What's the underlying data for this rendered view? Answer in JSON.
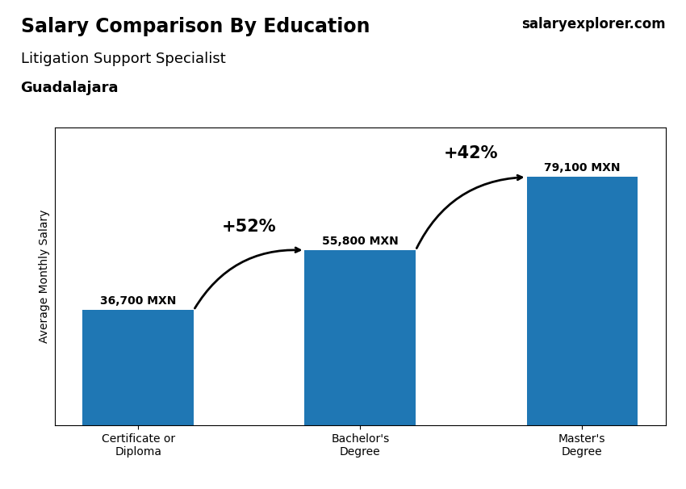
{
  "chart_data": {
    "type": "bar",
    "title": "Salary Comparison By Education",
    "subtitle": "Litigation Support Specialist",
    "ylabel": "Average Monthly Salary",
    "categories": [
      "Certificate or\nDiploma",
      "Bachelor's\nDegree",
      "Master's\nDegree"
    ],
    "values": [
      36700,
      55800,
      79100
    ],
    "value_labels": [
      "36,700 MXN",
      "55,800 MXN",
      "79,100 MXN"
    ],
    "data_labels": true,
    "ylim": [
      0,
      95000
    ],
    "tick_labels": "x",
    "annotations": [
      {
        "text": "Guadalajara",
        "loc": "upper left"
      },
      {
        "text": "salaryexplorer.com",
        "loc": "upper right"
      },
      {
        "text": "+52%",
        "from": "Certificate or\nDiploma",
        "to": "Bachelor's\nDegree"
      },
      {
        "text": "+42%",
        "from": "Bachelor's\nDegree",
        "to": "Master's\nDegree"
      }
    ]
  }
}
